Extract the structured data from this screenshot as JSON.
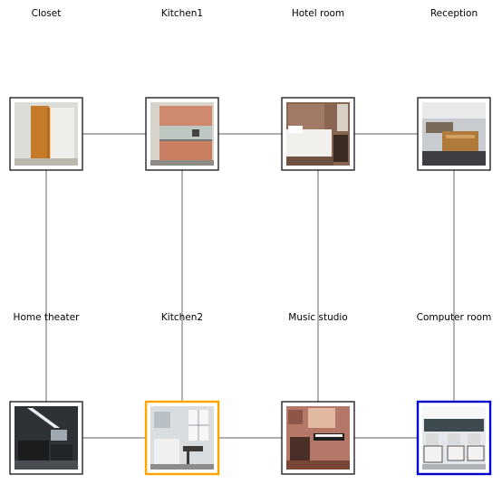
{
  "graph": {
    "columns": 4,
    "rows": 2,
    "nodes": [
      {
        "id": "closet",
        "label": "Closet",
        "row": 0,
        "col": 0,
        "highlight": "none",
        "scene": "closet"
      },
      {
        "id": "kitchen1",
        "label": "Kitchen1",
        "row": 0,
        "col": 1,
        "highlight": "none",
        "scene": "kitchen1"
      },
      {
        "id": "hotel-room",
        "label": "Hotel room",
        "row": 0,
        "col": 2,
        "highlight": "none",
        "scene": "hotel"
      },
      {
        "id": "reception",
        "label": "Reception",
        "row": 0,
        "col": 3,
        "highlight": "none",
        "scene": "reception"
      },
      {
        "id": "home-theater",
        "label": "Home theater",
        "row": 1,
        "col": 0,
        "highlight": "none",
        "scene": "theater"
      },
      {
        "id": "kitchen2",
        "label": "Kitchen2",
        "row": 1,
        "col": 1,
        "highlight": "orange",
        "scene": "kitchen2"
      },
      {
        "id": "music-studio",
        "label": "Music studio",
        "row": 1,
        "col": 2,
        "highlight": "none",
        "scene": "music"
      },
      {
        "id": "computer-room",
        "label": "Computer room",
        "row": 1,
        "col": 3,
        "highlight": "blue",
        "scene": "computer"
      }
    ],
    "edges": [
      [
        "closet",
        "kitchen1"
      ],
      [
        "kitchen1",
        "hotel-room"
      ],
      [
        "hotel-room",
        "reception"
      ],
      [
        "home-theater",
        "kitchen2"
      ],
      [
        "kitchen2",
        "music-studio"
      ],
      [
        "music-studio",
        "computer-room"
      ],
      [
        "closet",
        "home-theater"
      ],
      [
        "kitchen1",
        "kitchen2"
      ],
      [
        "hotel-room",
        "music-studio"
      ],
      [
        "reception",
        "computer-room"
      ]
    ]
  },
  "colors": {
    "edge": "#808080",
    "frame": "#000000",
    "orange": "#ffa500",
    "blue": "#0000cd"
  }
}
